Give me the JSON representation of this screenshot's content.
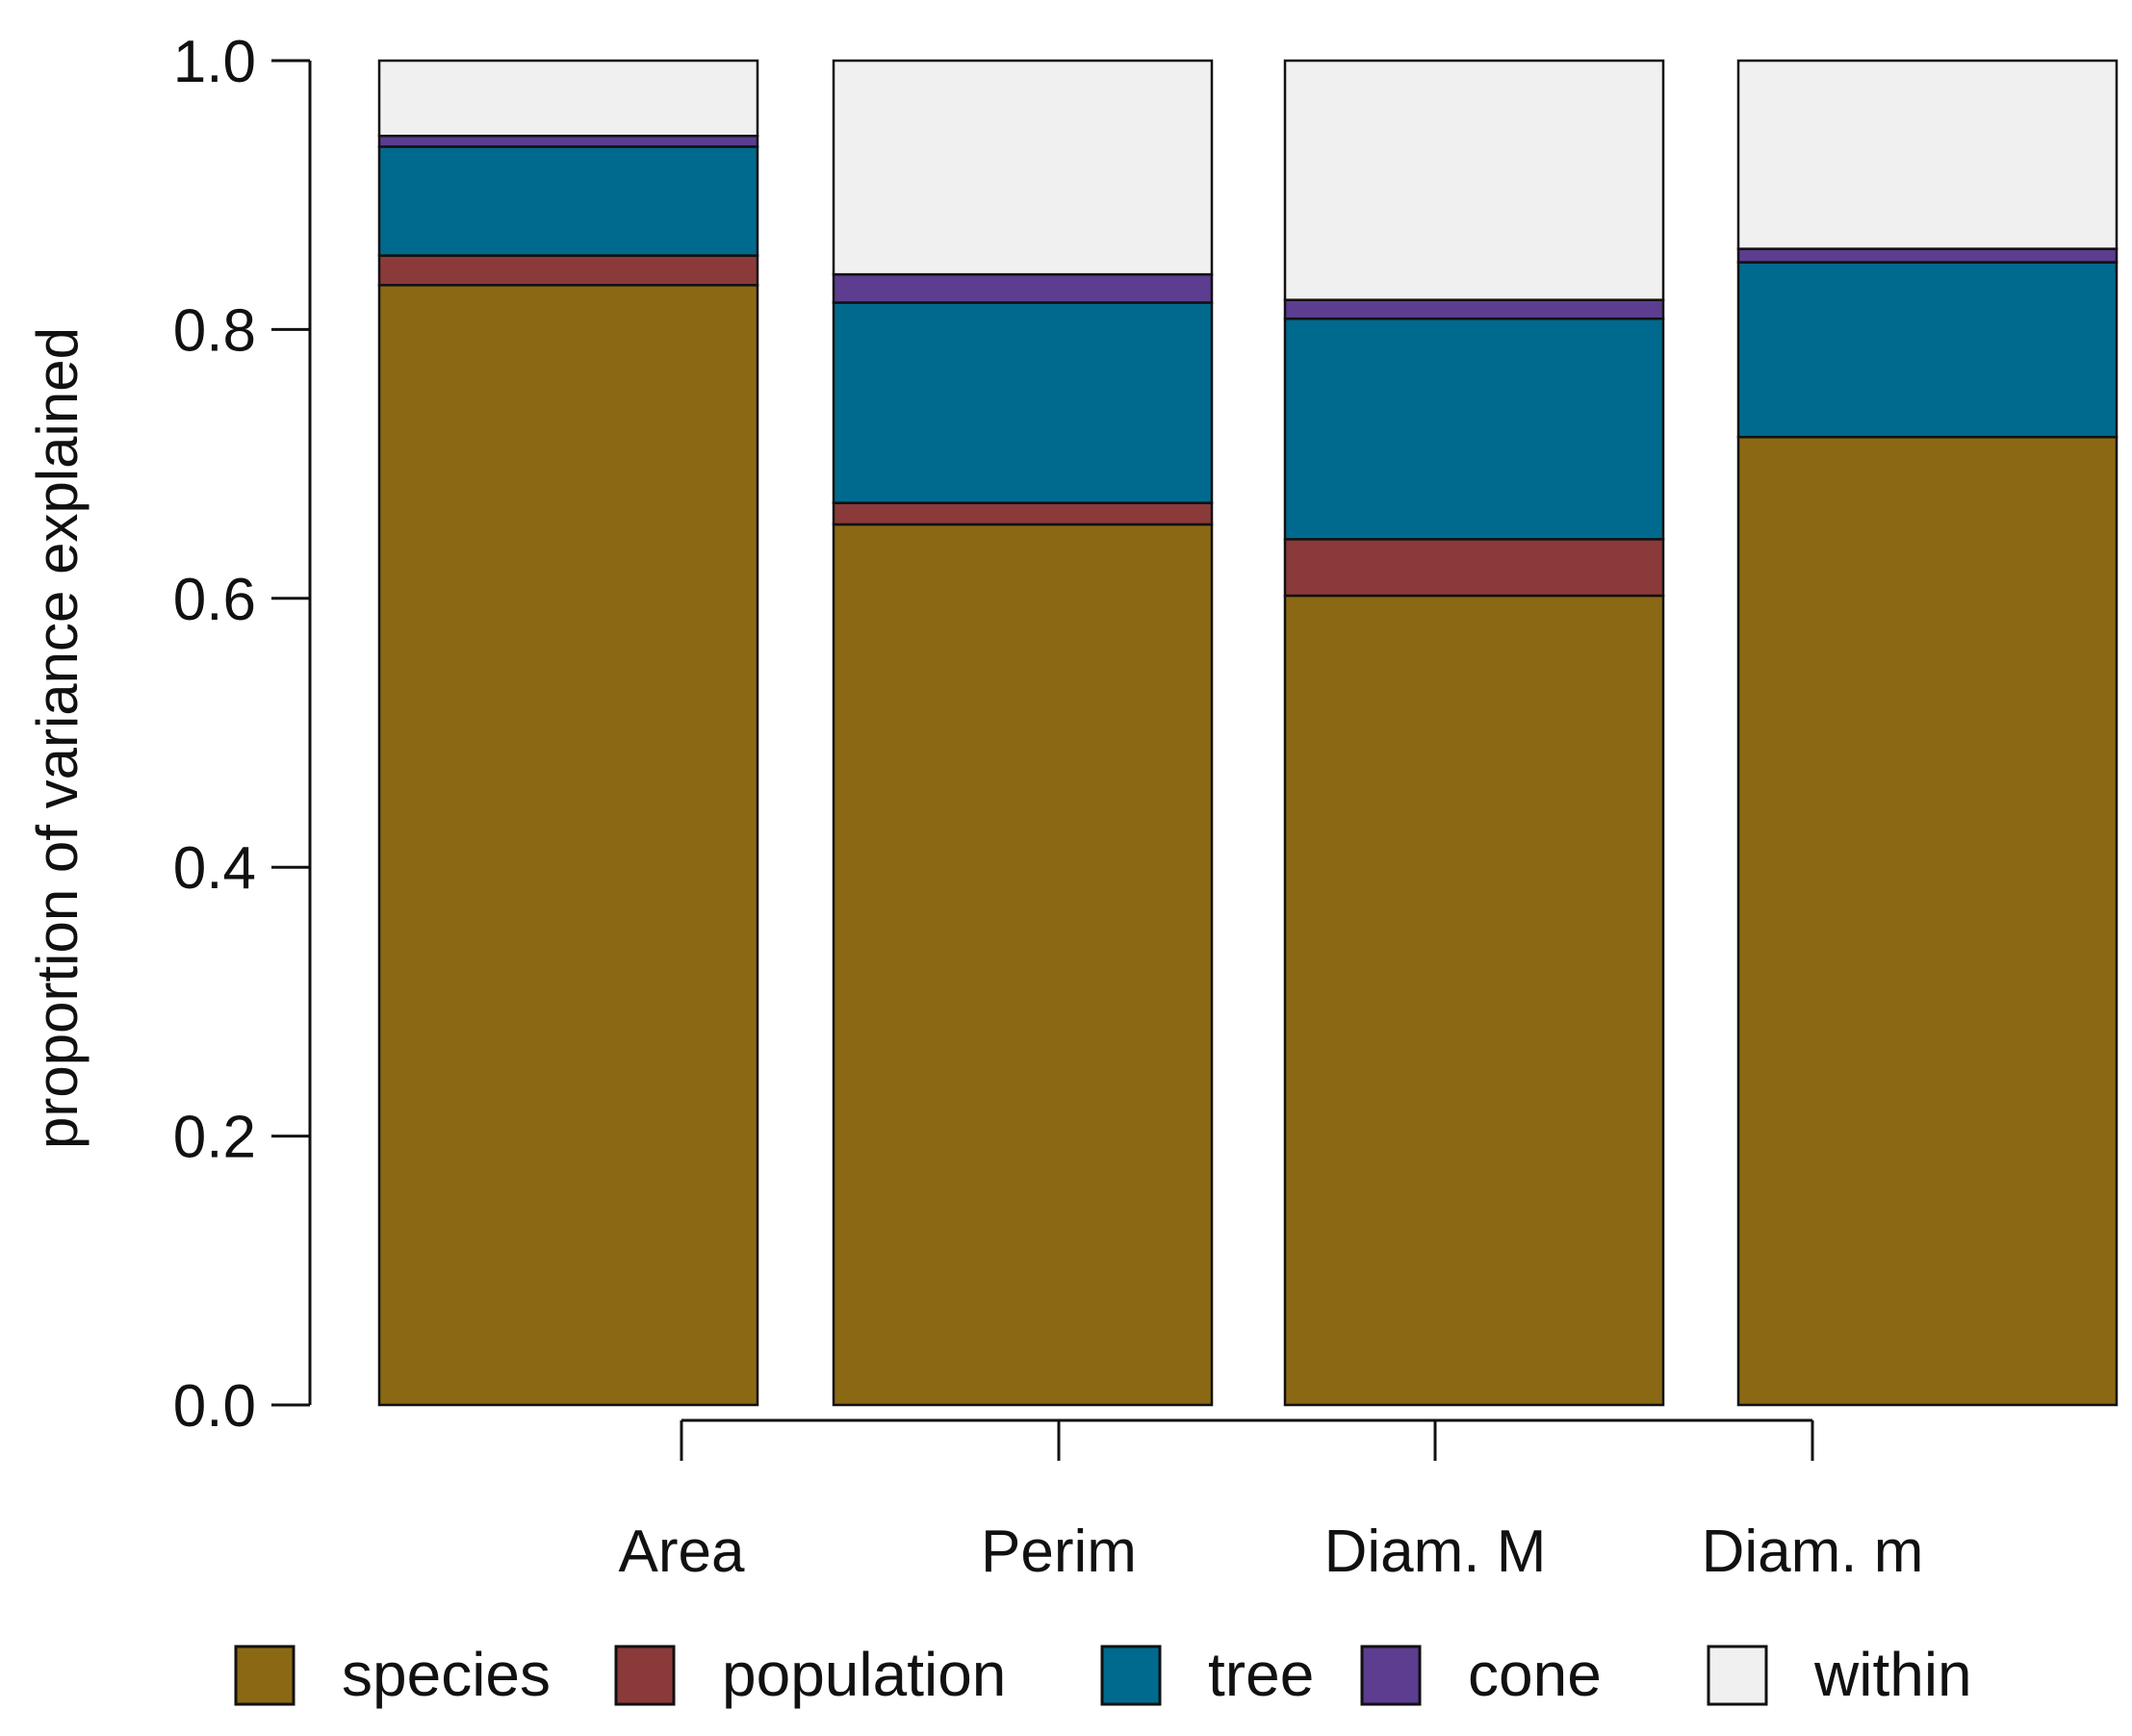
{
  "chart_data": {
    "type": "bar",
    "stacked": true,
    "title": "",
    "xlabel": "",
    "ylabel": "proportion of variance explained",
    "ylim": [
      0,
      1
    ],
    "yticks": [
      "0.0",
      "0.2",
      "0.4",
      "0.6",
      "0.8",
      "1.0"
    ],
    "categories": [
      "Area",
      "Perim",
      "Diam. M",
      "Diam. m"
    ],
    "series": [
      {
        "name": "species",
        "color": "#8B6914",
        "values": [
          0.833,
          0.655,
          0.602,
          0.72
        ]
      },
      {
        "name": "population",
        "color": "#8B3A3A",
        "values": [
          0.022,
          0.016,
          0.042,
          0.0
        ]
      },
      {
        "name": "tree",
        "color": "#006A8E",
        "values": [
          0.081,
          0.149,
          0.164,
          0.13
        ]
      },
      {
        "name": "cone",
        "color": "#5C3D8F",
        "values": [
          0.008,
          0.021,
          0.014,
          0.01
        ]
      },
      {
        "name": "within",
        "color": "#F0F0F0",
        "values": [
          0.056,
          0.159,
          0.178,
          0.14
        ]
      }
    ],
    "legend": [
      "species",
      "population",
      "tree",
      "cone",
      "within"
    ],
    "legend_position": "bottom"
  }
}
